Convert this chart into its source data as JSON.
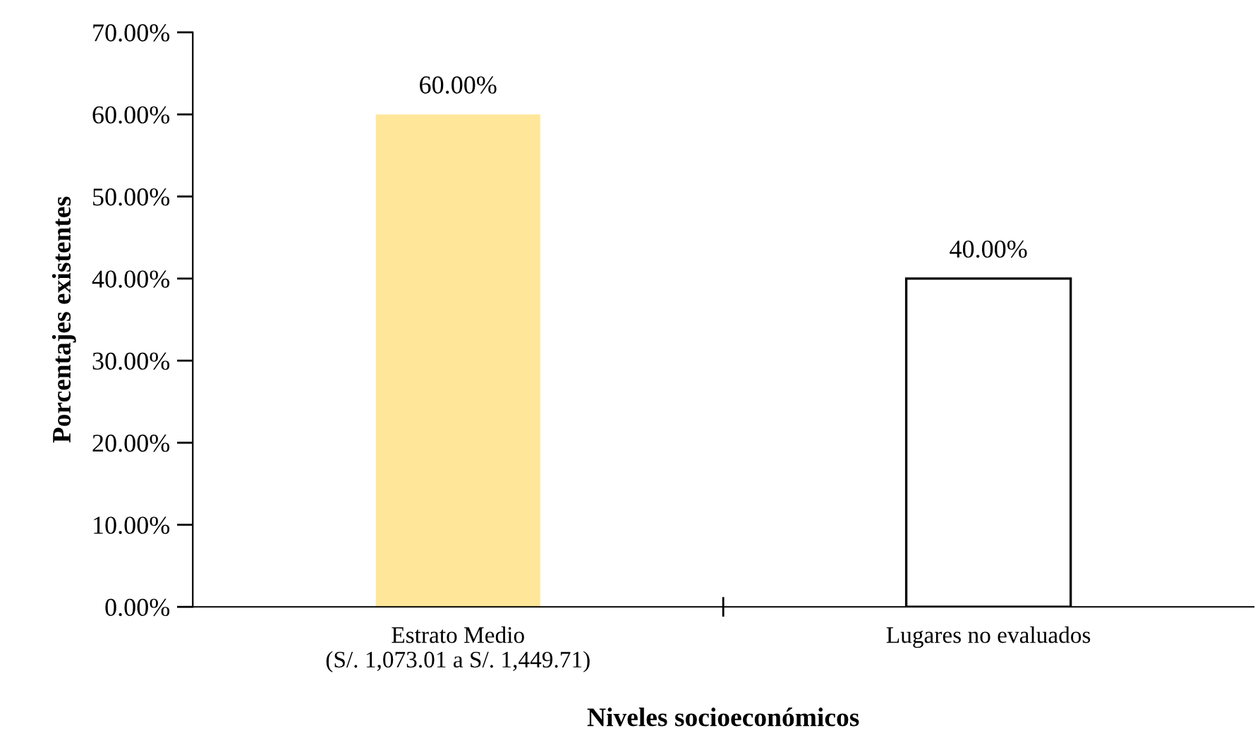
{
  "chart_data": {
    "type": "bar",
    "categories": [
      "Estrato Medio\n(S/. 1,073.01 a S/. 1,449.71)",
      "Lugares no evaluados"
    ],
    "values": [
      60,
      40
    ],
    "value_labels": [
      "60.00%",
      "40.00%"
    ],
    "colors": [
      "#ffe699",
      "#ffffff"
    ],
    "xlabel": "Niveles socioeconómicos",
    "ylabel": "Porcentajes existentes",
    "ylim": [
      0,
      70
    ],
    "yticks": [
      {
        "value": 0,
        "label": "0.00%"
      },
      {
        "value": 10,
        "label": "10.00%"
      },
      {
        "value": 20,
        "label": "20.00%"
      },
      {
        "value": 30,
        "label": "30.00%"
      },
      {
        "value": 40,
        "label": "40.00%"
      },
      {
        "value": 50,
        "label": "50.00%"
      },
      {
        "value": 60,
        "label": "60.00%"
      },
      {
        "value": 70,
        "label": "70.00%"
      }
    ],
    "grid": false,
    "legend": false
  }
}
